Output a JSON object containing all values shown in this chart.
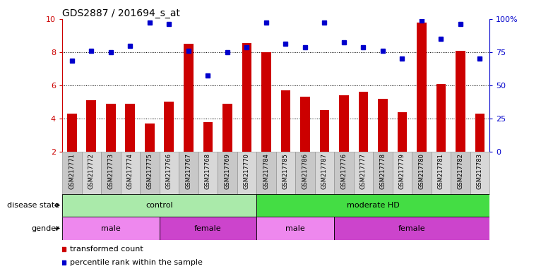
{
  "title": "GDS2887 / 201694_s_at",
  "samples": [
    "GSM217771",
    "GSM217772",
    "GSM217773",
    "GSM217774",
    "GSM217775",
    "GSM217766",
    "GSM217767",
    "GSM217768",
    "GSM217769",
    "GSM217770",
    "GSM217784",
    "GSM217785",
    "GSM217786",
    "GSM217787",
    "GSM217776",
    "GSM217777",
    "GSM217778",
    "GSM217779",
    "GSM217780",
    "GSM217781",
    "GSM217782",
    "GSM217783"
  ],
  "bar_values": [
    4.3,
    5.1,
    4.9,
    4.9,
    3.7,
    5.0,
    8.5,
    3.8,
    4.9,
    8.55,
    8.0,
    5.7,
    5.3,
    4.5,
    5.4,
    5.6,
    5.2,
    4.4,
    9.8,
    6.1,
    8.1,
    4.3
  ],
  "dot_values": [
    7.5,
    8.1,
    8.0,
    8.4,
    9.8,
    9.7,
    8.1,
    6.6,
    8.0,
    8.3,
    9.8,
    8.5,
    8.3,
    9.8,
    8.6,
    8.3,
    8.1,
    7.6,
    9.9,
    8.8,
    9.7,
    7.6
  ],
  "ylim": [
    2,
    10
  ],
  "yticks": [
    2,
    4,
    6,
    8,
    10
  ],
  "ytick_labels": [
    "2",
    "4",
    "6",
    "8",
    "10"
  ],
  "right_yticks": [
    0,
    25,
    50,
    75,
    100
  ],
  "right_ytick_labels": [
    "0",
    "25",
    "50",
    "75",
    "100%"
  ],
  "dotted_lines": [
    4,
    6,
    8
  ],
  "bar_color": "#cc0000",
  "dot_color": "#0000cc",
  "bar_width": 0.5,
  "disease_state_groups": [
    {
      "label": "control",
      "start": 0,
      "end": 10,
      "color": "#aaeaaa"
    },
    {
      "label": "moderate HD",
      "start": 10,
      "end": 22,
      "color": "#44dd44"
    }
  ],
  "gender_groups": [
    {
      "label": "male",
      "start": 0,
      "end": 5,
      "color": "#ee88ee"
    },
    {
      "label": "female",
      "start": 5,
      "end": 10,
      "color": "#cc44cc"
    },
    {
      "label": "male",
      "start": 10,
      "end": 14,
      "color": "#ee88ee"
    },
    {
      "label": "female",
      "start": 14,
      "end": 22,
      "color": "#cc44cc"
    }
  ],
  "disease_label": "disease state",
  "gender_label": "gender",
  "legend_bar_label": "transformed count",
  "legend_dot_label": "percentile rank within the sample",
  "title_color": "#000000",
  "left_axis_color": "#cc0000",
  "right_axis_color": "#0000cc",
  "background_color": "#ffffff"
}
